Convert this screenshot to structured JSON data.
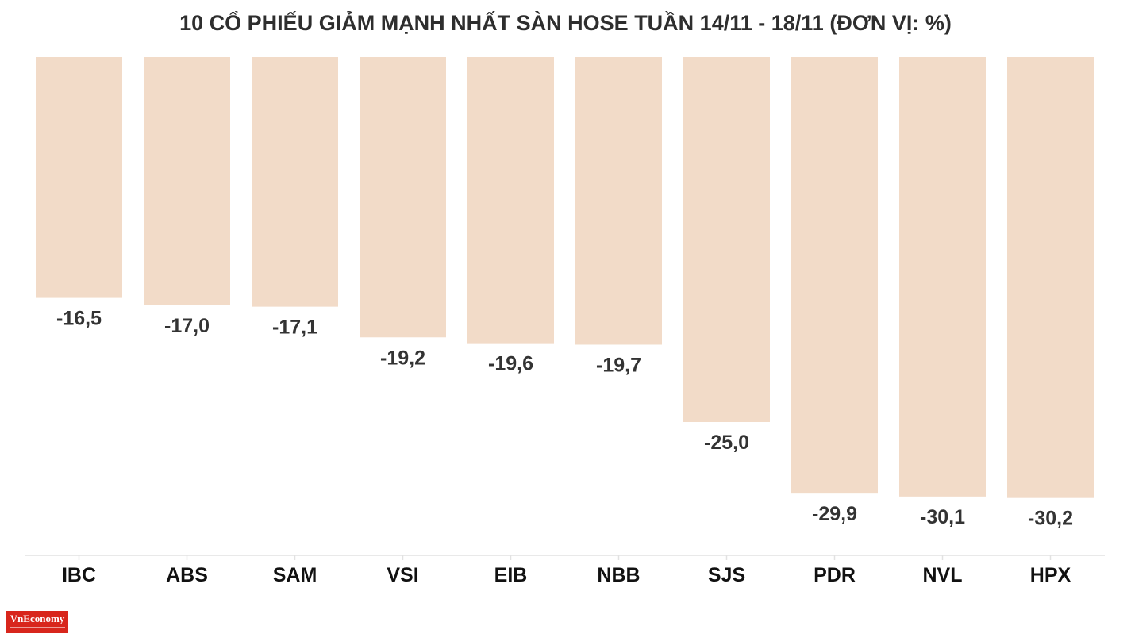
{
  "chart_data": {
    "type": "bar",
    "title": "10 CỔ PHIẾU GIẢM MẠNH NHẤT SÀN HOSE TUẦN 14/11 - 18/11 (ĐƠN VỊ: %)",
    "categories": [
      "IBC",
      "ABS",
      "SAM",
      "VSI",
      "EIB",
      "NBB",
      "SJS",
      "PDR",
      "NVL",
      "HPX"
    ],
    "values": [
      -16.5,
      -17.0,
      -17.1,
      -19.2,
      -19.6,
      -19.7,
      -25.0,
      -29.9,
      -30.1,
      -30.2
    ],
    "value_labels": [
      "-16,5",
      "-17,0",
      "-17,1",
      "-19,2",
      "-19,6",
      "-19,7",
      "-25,0",
      "-29,9",
      "-30,1",
      "-30,2"
    ],
    "xlabel": "",
    "ylabel": "",
    "ylim": [
      -34,
      0
    ],
    "grid": false,
    "bar_color": "#f2dbc8",
    "axis_color": "#e2e2e2"
  },
  "logo": {
    "text": "VnEconomy",
    "color": "#d8261c"
  }
}
